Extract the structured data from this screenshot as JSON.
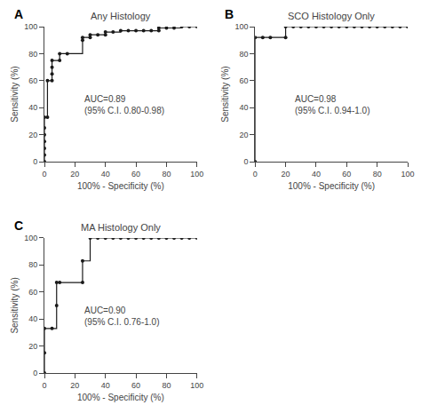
{
  "chart_data": [
    {
      "type": "step",
      "title": "Any Histology",
      "label": "A",
      "annotations": [
        "AUC=0.89\n(95% C.I. 0.80-0.98)"
      ],
      "x": [
        0,
        0,
        0,
        0,
        0,
        0,
        0,
        2,
        2,
        5,
        5,
        5,
        5,
        10,
        10,
        15,
        25,
        25,
        30,
        30,
        35,
        40,
        40,
        45,
        50,
        55,
        60,
        65,
        70,
        75,
        75,
        80,
        85,
        90,
        95,
        100
      ],
      "values": [
        0,
        5,
        10,
        15,
        20,
        25,
        33,
        33,
        60,
        60,
        65,
        70,
        75,
        75,
        80,
        80,
        90,
        92,
        92,
        94,
        94,
        94,
        96,
        96,
        97,
        97,
        97,
        97,
        97,
        97,
        99,
        99,
        99,
        100,
        100,
        100
      ],
      "xlabel": "100% - Specificity (%)",
      "ylabel": "Sensitivity (%)",
      "xlim": [
        0,
        100
      ],
      "ylim": [
        0,
        100
      ],
      "xticks": [
        0,
        20,
        40,
        60,
        80,
        100
      ],
      "yticks": [
        0,
        20,
        40,
        60,
        80,
        100
      ],
      "color": "#1a1a1a",
      "marker": "dot",
      "grid": false
    },
    {
      "type": "step",
      "title": "SCO Histology Only",
      "label": "B",
      "annotations": [
        "AUC=0.98\n(95% C.I. 0.94-1.0)"
      ],
      "x": [
        0,
        0,
        5,
        10,
        20,
        20,
        25,
        30,
        35,
        40,
        45,
        50,
        55,
        60,
        65,
        70,
        75,
        80,
        85,
        90,
        95,
        100
      ],
      "values": [
        0,
        92,
        92,
        92,
        92,
        100,
        100,
        100,
        100,
        100,
        100,
        100,
        100,
        100,
        100,
        100,
        100,
        100,
        100,
        100,
        100,
        100
      ],
      "xlabel": "100% - Specificity (%)",
      "ylabel": "Sensitivity (%)",
      "xlim": [
        0,
        100
      ],
      "ylim": [
        0,
        100
      ],
      "xticks": [
        0,
        20,
        40,
        60,
        80,
        100
      ],
      "yticks": [
        0,
        20,
        40,
        60,
        80,
        100
      ],
      "color": "#1a1a1a",
      "marker": "dot",
      "grid": false
    },
    {
      "type": "step",
      "title": "MA Histology Only",
      "label": "C",
      "annotations": [
        "AUC=0.90\n(95% C.I. 0.76-1.0)"
      ],
      "x": [
        0,
        0,
        0,
        5,
        8,
        8,
        10,
        25,
        25,
        30,
        35,
        40,
        45,
        50,
        55,
        60,
        65,
        70,
        75,
        80,
        85,
        90,
        95,
        100
      ],
      "values": [
        0,
        15,
        33,
        33,
        50,
        67,
        67,
        67,
        83,
        100,
        100,
        100,
        100,
        100,
        100,
        100,
        100,
        100,
        100,
        100,
        100,
        100,
        100,
        100
      ],
      "xlabel": "100% - Specificity (%)",
      "ylabel": "Sensitivity (%)",
      "xlim": [
        0,
        100
      ],
      "ylim": [
        0,
        100
      ],
      "xticks": [
        0,
        20,
        40,
        60,
        80,
        100
      ],
      "yticks": [
        0,
        20,
        40,
        60,
        80,
        100
      ],
      "color": "#1a1a1a",
      "marker": "dot",
      "grid": false
    }
  ]
}
